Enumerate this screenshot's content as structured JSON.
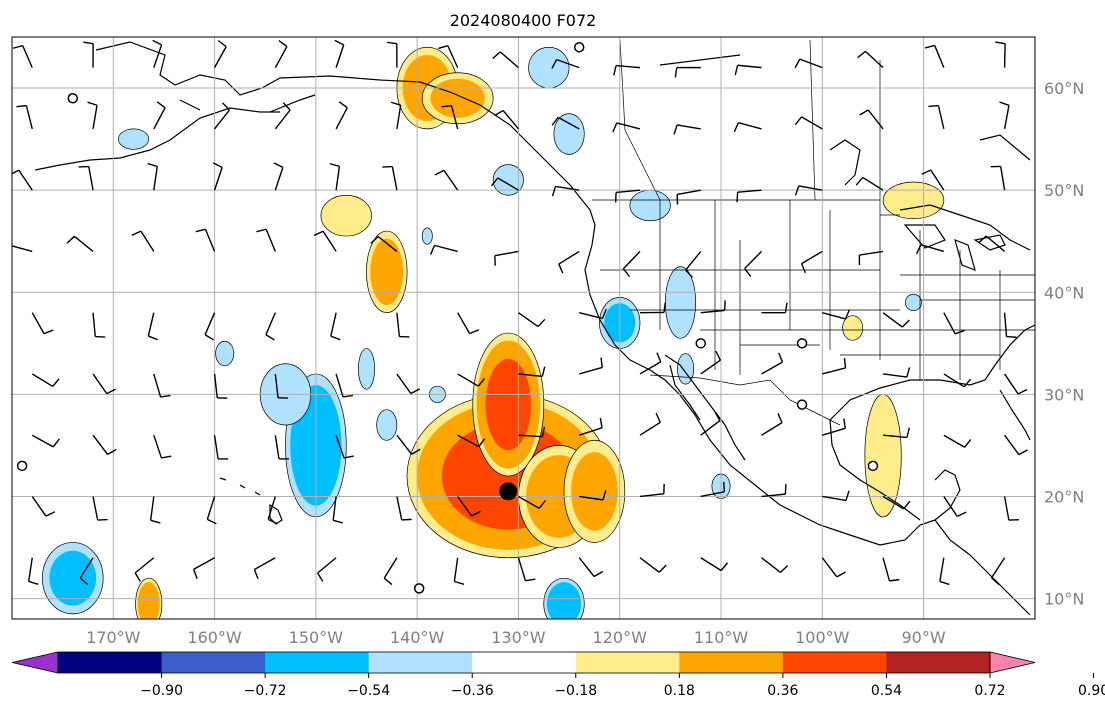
{
  "title": "2024080400 F072",
  "map": {
    "lon_range": [
      -180,
      -79
    ],
    "lat_range": [
      8,
      65
    ],
    "grid": true,
    "lon_ticks": [
      {
        "value": -170,
        "label": "170°W"
      },
      {
        "value": -160,
        "label": "160°W"
      },
      {
        "value": -150,
        "label": "150°W"
      },
      {
        "value": -140,
        "label": "140°W"
      },
      {
        "value": -130,
        "label": "130°W"
      },
      {
        "value": -120,
        "label": "120°W"
      },
      {
        "value": -110,
        "label": "110°W"
      },
      {
        "value": -100,
        "label": "100°W"
      },
      {
        "value": -90,
        "label": "90°W"
      }
    ],
    "lat_ticks": [
      {
        "value": 10,
        "label": "10°N"
      },
      {
        "value": 20,
        "label": "20°N"
      },
      {
        "value": 30,
        "label": "30°N"
      },
      {
        "value": 40,
        "label": "40°N"
      },
      {
        "value": 50,
        "label": "50°N"
      },
      {
        "value": 60,
        "label": "60°N"
      }
    ],
    "lat_ticks_side": "right",
    "marker": {
      "lon": -131,
      "lat": 20.5,
      "label": ""
    },
    "open_circles": [
      {
        "lon": -174,
        "lat": 59
      },
      {
        "lon": -179,
        "lat": 23
      },
      {
        "lon": -124,
        "lat": 64
      },
      {
        "lon": -112,
        "lat": 35
      },
      {
        "lon": -102,
        "lat": 35
      },
      {
        "lon": -102,
        "lat": 29
      },
      {
        "lon": -95,
        "lat": 23
      },
      {
        "lon": -139.8,
        "lat": 11
      }
    ]
  },
  "colorbar": {
    "levels": [
      -0.9,
      -0.72,
      -0.54,
      -0.36,
      -0.18,
      0.18,
      0.36,
      0.54,
      0.72,
      0.9
    ],
    "tick_labels": [
      "−0.90",
      "−0.72",
      "−0.54",
      "−0.36",
      "−0.18",
      "0.18",
      "0.36",
      "0.54",
      "0.72",
      "0.90"
    ],
    "colors": [
      "#9932cc",
      "#000080",
      "#3a5fcd",
      "#00bfff",
      "#b0e2ff",
      "#ffffff",
      "#ffec8b",
      "#ffa500",
      "#ff4500",
      "#b22222",
      "#ff82ab"
    ],
    "extend": "both"
  },
  "chart_data": {
    "type": "heatmap",
    "title": "2024080400 F072",
    "xlabel": "",
    "ylabel": "",
    "xlim": [
      -180,
      -79
    ],
    "ylim": [
      8,
      65
    ],
    "contour_levels": [
      -0.9,
      -0.72,
      -0.54,
      -0.36,
      -0.18,
      0.18,
      0.36,
      0.54,
      0.72,
      0.9
    ],
    "anomaly_regions": [
      {
        "lon": -131,
        "lat": 22,
        "rx": 10,
        "ry": 8,
        "value": 0.62
      },
      {
        "lon": -131,
        "lat": 29,
        "rx": 3.5,
        "ry": 7,
        "value": 0.6
      },
      {
        "lon": -126,
        "lat": 20,
        "rx": 4,
        "ry": 5,
        "value": 0.45
      },
      {
        "lon": -122.5,
        "lat": 20.5,
        "rx": 3,
        "ry": 5,
        "value": 0.4
      },
      {
        "lon": -139,
        "lat": 60,
        "rx": 3,
        "ry": 4,
        "value": 0.45
      },
      {
        "lon": -136,
        "lat": 59,
        "rx": 3.5,
        "ry": 2.5,
        "value": 0.4
      },
      {
        "lon": -143,
        "lat": 42,
        "rx": 2,
        "ry": 4,
        "value": 0.45
      },
      {
        "lon": -147,
        "lat": 47.5,
        "rx": 2.5,
        "ry": 2,
        "value": 0.25
      },
      {
        "lon": -166.5,
        "lat": 9.5,
        "rx": 1.3,
        "ry": 2.5,
        "value": 0.5
      },
      {
        "lon": -94,
        "lat": 24,
        "rx": 1.8,
        "ry": 6,
        "value": 0.3
      },
      {
        "lon": -91,
        "lat": 49,
        "rx": 3,
        "ry": 1.8,
        "value": 0.3
      },
      {
        "lon": -97,
        "lat": 36.5,
        "rx": 1,
        "ry": 1.2,
        "value": 0.25
      },
      {
        "lon": -150,
        "lat": 25,
        "rx": 3,
        "ry": 7,
        "value": -0.5
      },
      {
        "lon": -153,
        "lat": 30,
        "rx": 2.5,
        "ry": 3,
        "value": -0.25
      },
      {
        "lon": -174,
        "lat": 12,
        "rx": 3,
        "ry": 3.5,
        "value": -0.4
      },
      {
        "lon": -125.5,
        "lat": 9.5,
        "rx": 2,
        "ry": 2.5,
        "value": -0.5
      },
      {
        "lon": -120,
        "lat": 37,
        "rx": 2,
        "ry": 2.5,
        "value": -0.4
      },
      {
        "lon": -114,
        "lat": 39,
        "rx": 1.5,
        "ry": 3.5,
        "value": -0.25
      },
      {
        "lon": -127,
        "lat": 62,
        "rx": 2,
        "ry": 2,
        "value": -0.25
      },
      {
        "lon": -125,
        "lat": 55.5,
        "rx": 1.5,
        "ry": 2,
        "value": -0.3
      },
      {
        "lon": -131,
        "lat": 51,
        "rx": 1.5,
        "ry": 1.5,
        "value": -0.35
      },
      {
        "lon": -117,
        "lat": 48.5,
        "rx": 2,
        "ry": 1.5,
        "value": -0.35
      },
      {
        "lon": -145,
        "lat": 32.5,
        "rx": 0.8,
        "ry": 2,
        "value": -0.25
      },
      {
        "lon": -138,
        "lat": 30,
        "rx": 0.8,
        "ry": 0.8,
        "value": -0.22
      },
      {
        "lon": -143,
        "lat": 27,
        "rx": 1,
        "ry": 1.5,
        "value": -0.22
      },
      {
        "lon": -159,
        "lat": 34,
        "rx": 0.9,
        "ry": 1.2,
        "value": -0.22
      },
      {
        "lon": -168,
        "lat": 55,
        "rx": 1.5,
        "ry": 1,
        "value": -0.22
      },
      {
        "lon": -110,
        "lat": 21,
        "rx": 0.9,
        "ry": 1.2,
        "value": -0.22
      },
      {
        "lon": -113.5,
        "lat": 32.5,
        "rx": 0.8,
        "ry": 1.5,
        "value": -0.22
      },
      {
        "lon": -91,
        "lat": 39,
        "rx": 0.8,
        "ry": 0.8,
        "value": -0.22
      },
      {
        "lon": -139,
        "lat": 45.5,
        "rx": 0.5,
        "ry": 0.8,
        "value": -0.22
      }
    ]
  }
}
